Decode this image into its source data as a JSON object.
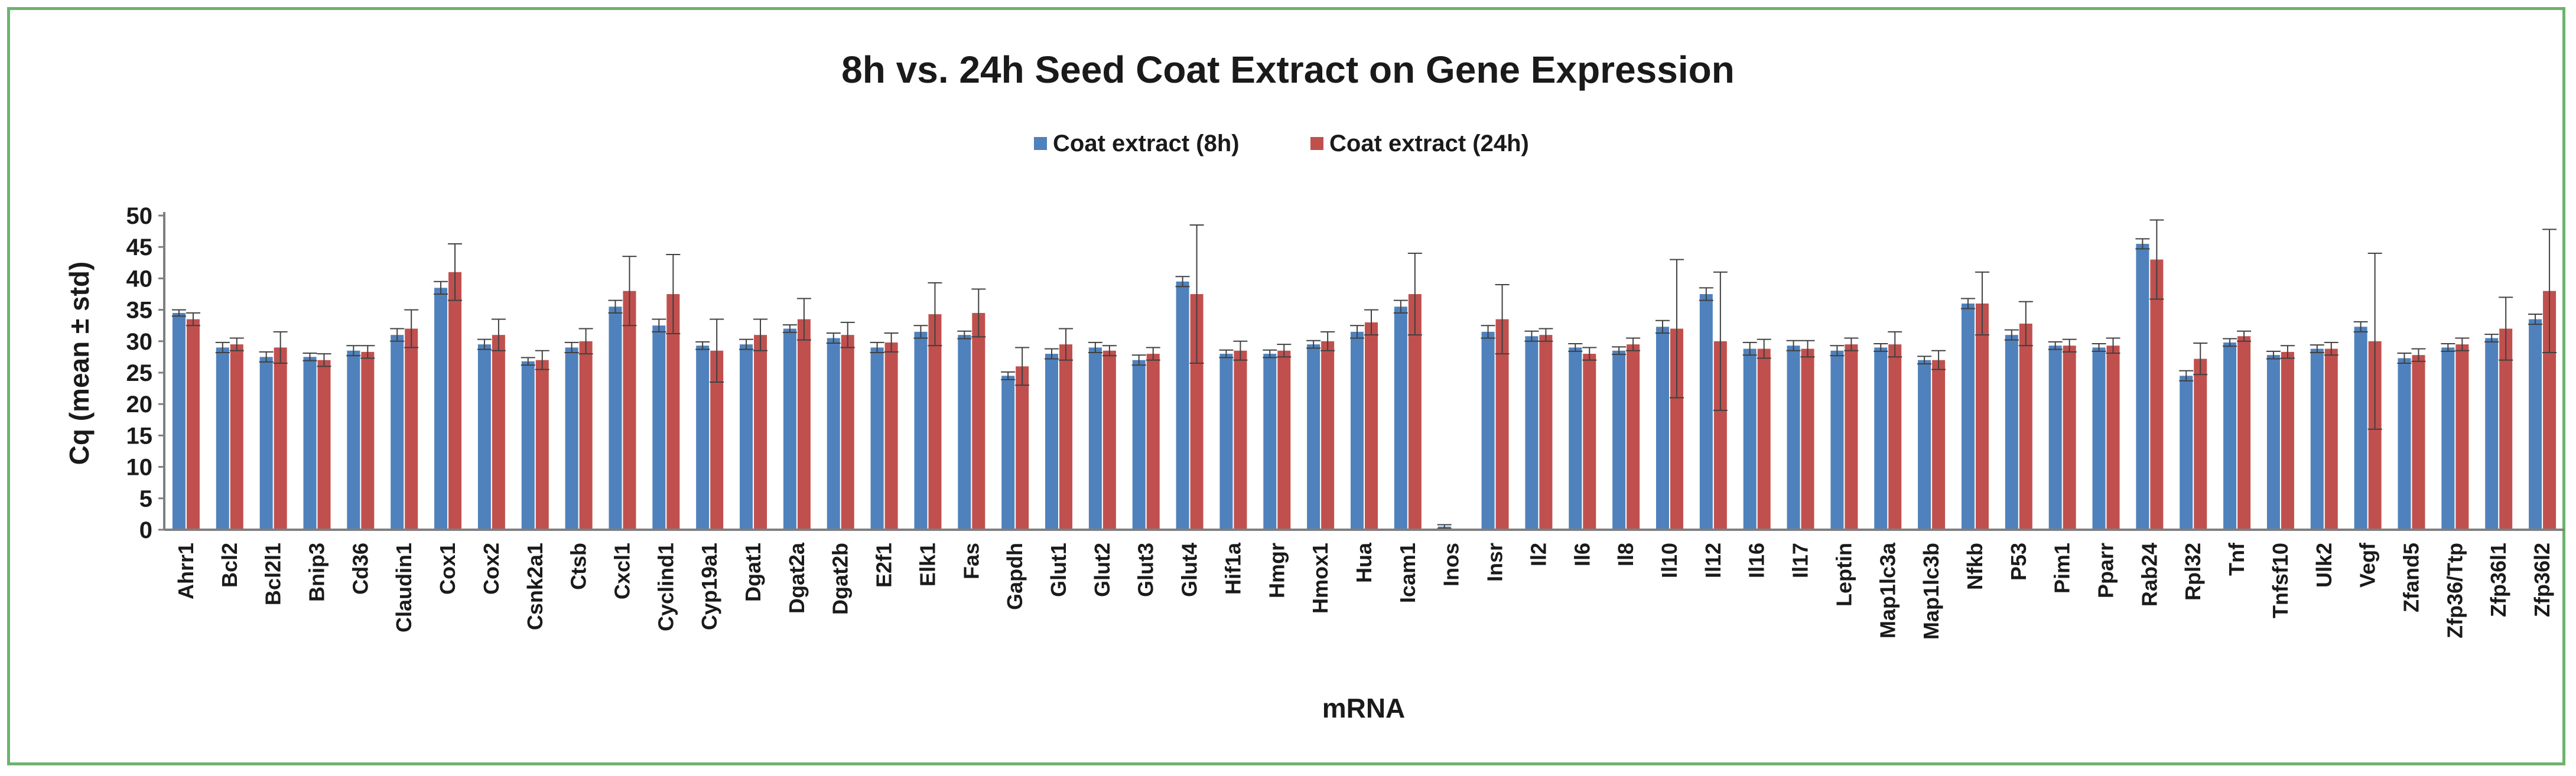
{
  "chart_data": {
    "type": "bar",
    "title": "8h vs. 24h Seed Coat Extract on Gene Expression",
    "xlabel": "mRNA",
    "ylabel": "Cq (mean ± std)",
    "ylim": [
      0,
      50
    ],
    "yticks": [
      0,
      5,
      10,
      15,
      20,
      25,
      30,
      35,
      40,
      45,
      50
    ],
    "legend_position": "top-center",
    "categories": [
      "Ahrr1",
      "Bcl2",
      "Bcl2l1",
      "Bnip3",
      "Cd36",
      "Claudin1",
      "Cox1",
      "Cox2",
      "Csnk2a1",
      "Ctsb",
      "Cxcl1",
      "Cyclind1",
      "Cyp19a1",
      "Dgat1",
      "Dgat2a",
      "Dgat2b",
      "E2f1",
      "Elk1",
      "Fas",
      "Gapdh",
      "Glut1",
      "Glut2",
      "Glut3",
      "Glut4",
      "Hif1a",
      "Hmgr",
      "Hmox1",
      "Hua",
      "Icam1",
      "Inos",
      "Insr",
      "Il2",
      "Il6",
      "Il8",
      "Il10",
      "Il12",
      "Il16",
      "Il17",
      "Leptin",
      "Map1lc3a",
      "Map1lc3b",
      "Nfkb",
      "P53",
      "Pim1",
      "Pparr",
      "Rab24",
      "Rpl32",
      "Tnf",
      "Tnfsf10",
      "Ulk2",
      "Vegf",
      "Zfand5",
      "Zfp36/Ttp",
      "Zfp36l1",
      "Zfp36l2"
    ],
    "series": [
      {
        "name": "Coat extract (8h)",
        "color": "#4f81bd",
        "values": [
          34.5,
          29,
          27.5,
          27.5,
          28.5,
          31,
          38.5,
          29.5,
          26.8,
          29,
          35.5,
          32.5,
          29.3,
          29.5,
          32,
          30.5,
          29,
          31.5,
          31,
          24.5,
          28,
          29,
          27,
          39.5,
          28,
          28,
          29.5,
          31.5,
          35.5,
          0.5,
          31.5,
          30.8,
          29,
          28.5,
          32.3,
          37.5,
          28.8,
          29.3,
          28.5,
          29,
          27,
          36,
          31,
          29.3,
          29,
          45.5,
          24.5,
          29.8,
          27.8,
          28.8,
          32.3,
          27.3,
          29,
          30.5,
          33.5
        ],
        "errors": [
          0.5,
          0.8,
          0.8,
          0.6,
          0.8,
          1,
          1,
          0.8,
          0.6,
          0.8,
          1,
          1,
          0.6,
          0.8,
          0.6,
          0.8,
          0.8,
          1,
          0.6,
          0.6,
          0.8,
          0.8,
          0.8,
          0.8,
          0.6,
          0.6,
          0.6,
          1,
          1,
          0.3,
          1,
          0.8,
          0.6,
          0.6,
          1,
          1,
          1,
          0.8,
          0.8,
          0.6,
          0.6,
          0.8,
          0.8,
          0.6,
          0.6,
          0.8,
          0.8,
          0.6,
          0.6,
          0.6,
          0.8,
          0.8,
          0.6,
          0.6,
          0.8
        ]
      },
      {
        "name": "Coat extract (24h)",
        "color": "#c0504d",
        "values": [
          33.5,
          29.5,
          29,
          27,
          28.3,
          32,
          41,
          31,
          27,
          30,
          38,
          37.5,
          28.5,
          31,
          33.5,
          31,
          29.8,
          34.3,
          34.5,
          26,
          29.5,
          28.5,
          28,
          37.5,
          28.5,
          28.5,
          30,
          33,
          37.5,
          0,
          33.5,
          31,
          28,
          29.5,
          32,
          30,
          28.8,
          28.8,
          29.5,
          29.5,
          27,
          36,
          32.8,
          29.3,
          29.3,
          43,
          27.2,
          30.8,
          28.3,
          28.8,
          30,
          27.8,
          29.5,
          32,
          38
        ],
        "errors": [
          1,
          1,
          2.5,
          1,
          1,
          3,
          4.5,
          2.5,
          1.5,
          2,
          5.5,
          6.3,
          5,
          2.5,
          3.3,
          2,
          1.5,
          5,
          3.8,
          3,
          2.5,
          0.8,
          1,
          11,
          1.5,
          1,
          1.5,
          2,
          6.5,
          0,
          5.5,
          1,
          1,
          1,
          11,
          11,
          1.5,
          1.3,
          1,
          2,
          1.5,
          5,
          3.5,
          1,
          1.2,
          6.3,
          2.5,
          0.8,
          1,
          1,
          14,
          1,
          1,
          5,
          9.8
        ]
      }
    ]
  }
}
